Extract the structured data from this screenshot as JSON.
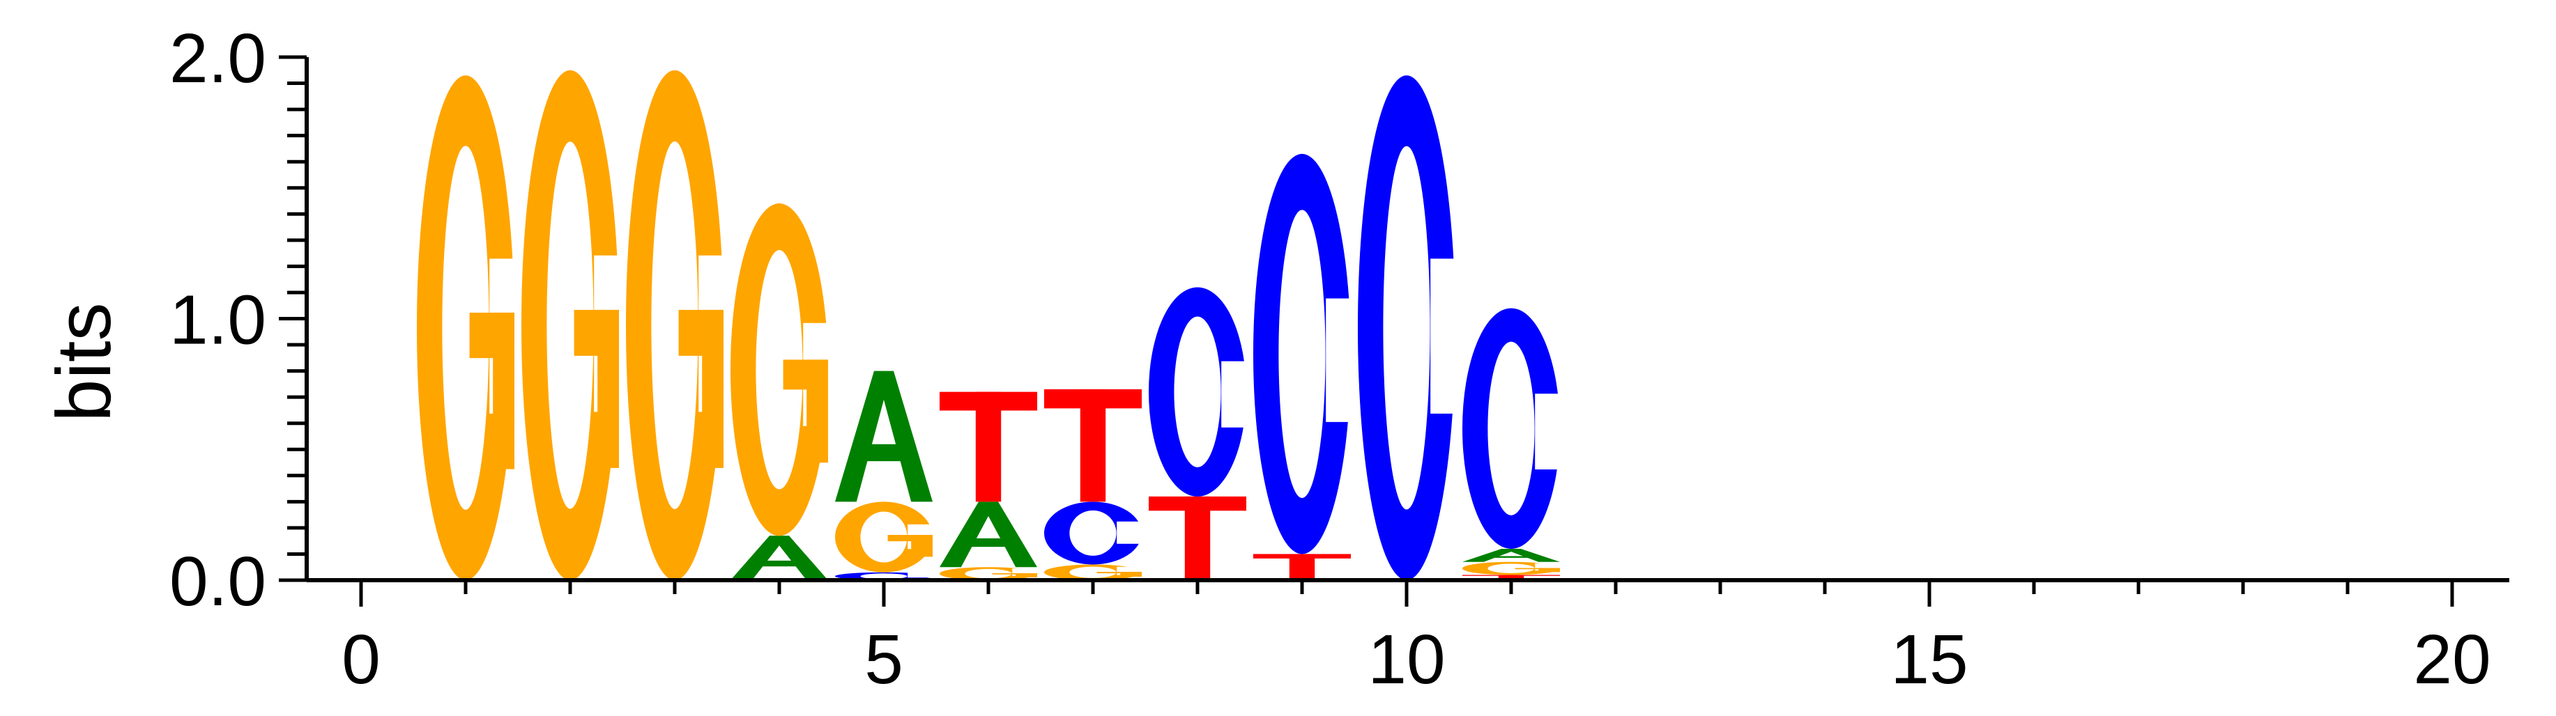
{
  "chart_data": {
    "type": "sequence-logo",
    "title": "",
    "xlabel": "",
    "ylabel": "bits",
    "xlim": [
      -0.5,
      20.5
    ],
    "ylim": [
      0,
      2
    ],
    "x_ticks": [
      0,
      5,
      10,
      15,
      20
    ],
    "x_tick_labels": [
      "0",
      "5",
      "10",
      "15",
      "20"
    ],
    "y_ticks": [
      0,
      1,
      2
    ],
    "y_tick_labels": [
      "0.0",
      "1.0",
      "2.0"
    ],
    "grid": false,
    "legend": "none",
    "colors": {
      "A": "#008000",
      "C": "#0000ff",
      "G": "#ffa500",
      "T": "#ff0000"
    },
    "positions": [
      {
        "x": 1,
        "stack": [
          {
            "letter": "G",
            "height": 1.93
          }
        ]
      },
      {
        "x": 2,
        "stack": [
          {
            "letter": "G",
            "height": 1.95
          }
        ]
      },
      {
        "x": 3,
        "stack": [
          {
            "letter": "G",
            "height": 1.95
          }
        ]
      },
      {
        "x": 4,
        "stack": [
          {
            "letter": "A",
            "height": 0.17
          },
          {
            "letter": "G",
            "height": 1.27
          }
        ]
      },
      {
        "x": 5,
        "stack": [
          {
            "letter": "C",
            "height": 0.03
          },
          {
            "letter": "G",
            "height": 0.27
          },
          {
            "letter": "A",
            "height": 0.5
          }
        ]
      },
      {
        "x": 6,
        "stack": [
          {
            "letter": "G",
            "height": 0.05
          },
          {
            "letter": "A",
            "height": 0.25
          },
          {
            "letter": "T",
            "height": 0.42
          }
        ]
      },
      {
        "x": 7,
        "stack": [
          {
            "letter": "G",
            "height": 0.06
          },
          {
            "letter": "C",
            "height": 0.24
          },
          {
            "letter": "T",
            "height": 0.43
          }
        ]
      },
      {
        "x": 8,
        "stack": [
          {
            "letter": "T",
            "height": 0.32
          },
          {
            "letter": "C",
            "height": 0.8
          }
        ]
      },
      {
        "x": 9,
        "stack": [
          {
            "letter": "T",
            "height": 0.1
          },
          {
            "letter": "C",
            "height": 1.53
          }
        ]
      },
      {
        "x": 10,
        "stack": [
          {
            "letter": "C",
            "height": 1.93
          }
        ]
      },
      {
        "x": 11,
        "stack": [
          {
            "letter": "T",
            "height": 0.02
          },
          {
            "letter": "G",
            "height": 0.05
          },
          {
            "letter": "A",
            "height": 0.05
          },
          {
            "letter": "C",
            "height": 0.92
          }
        ]
      }
    ]
  }
}
